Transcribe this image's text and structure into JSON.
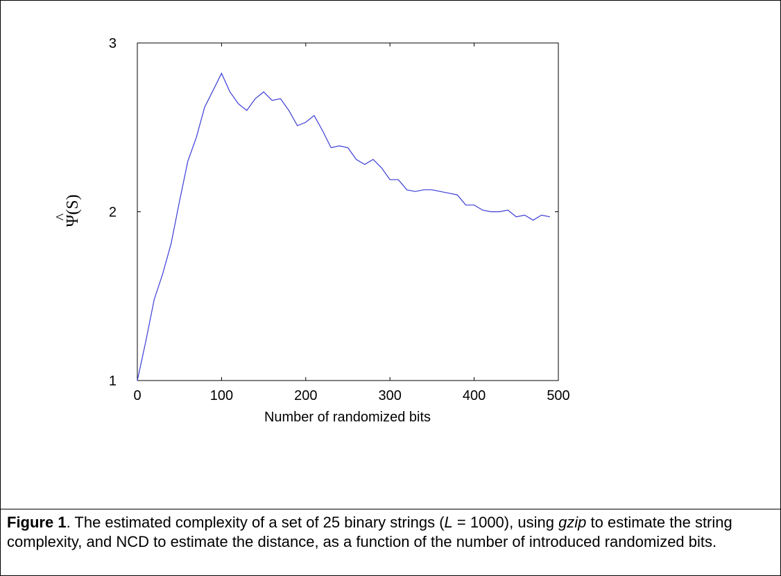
{
  "chart_data": {
    "type": "line",
    "title": "",
    "xlabel": "Number of randomized bits",
    "ylabel_symbol": "Ψ",
    "ylabel_arg": "(S)",
    "xlim": [
      0,
      500
    ],
    "ylim": [
      1,
      3
    ],
    "x_ticks": [
      "0",
      "100",
      "200",
      "300",
      "400",
      "500"
    ],
    "y_ticks": [
      "1",
      "2",
      "3"
    ],
    "grid": false,
    "line_color": "#3b3bd6",
    "x": [
      0,
      10,
      20,
      30,
      40,
      50,
      60,
      70,
      80,
      90,
      100,
      110,
      120,
      130,
      140,
      150,
      160,
      170,
      180,
      190,
      200,
      210,
      220,
      230,
      240,
      250,
      260,
      270,
      280,
      290,
      300,
      310,
      320,
      330,
      340,
      350,
      360,
      370,
      380,
      390,
      400,
      410,
      420,
      430,
      440,
      450,
      460,
      470,
      480,
      490
    ],
    "y": [
      1.0,
      1.23,
      1.48,
      1.63,
      1.81,
      2.06,
      2.3,
      2.44,
      2.62,
      2.72,
      2.82,
      2.71,
      2.64,
      2.6,
      2.67,
      2.71,
      2.66,
      2.67,
      2.6,
      2.51,
      2.53,
      2.57,
      2.48,
      2.38,
      2.39,
      2.38,
      2.31,
      2.28,
      2.31,
      2.26,
      2.19,
      2.19,
      2.13,
      2.12,
      2.13,
      2.13,
      2.12,
      2.11,
      2.1,
      2.04,
      2.04,
      2.01,
      2.0,
      2.0,
      2.01,
      1.97,
      1.98,
      1.95,
      1.98,
      1.97
    ]
  },
  "caption": {
    "label": "Figure 1",
    "part1": ". The estimated complexity of a set of 25 binary strings (",
    "var_L": "L",
    "part2": " = 1000), using ",
    "tool": "gzip",
    "part3": " to estimate the string complexity, and NCD to estimate the distance, as a function of the number of introduced randomized bits."
  }
}
